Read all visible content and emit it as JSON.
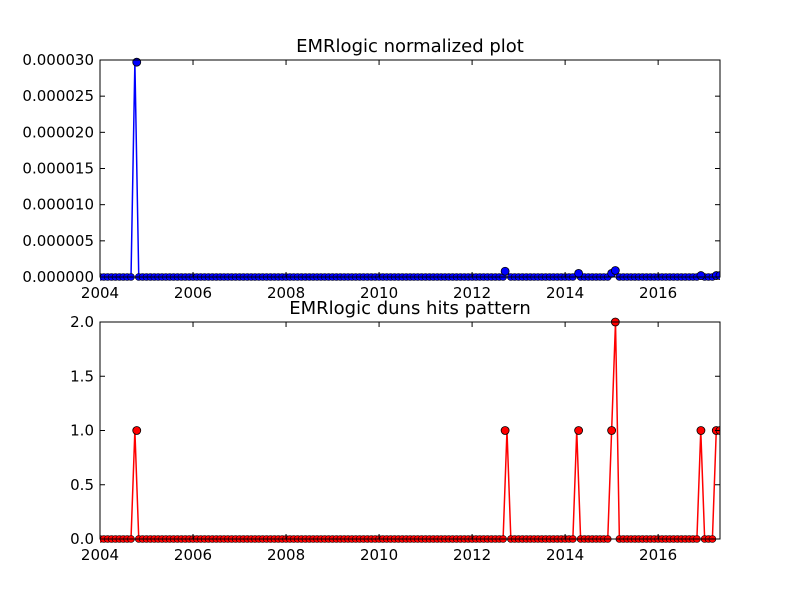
{
  "chart_data": [
    {
      "type": "line",
      "title": "EMRlogic normalized plot",
      "xlabel": "",
      "ylabel": "",
      "xlim": [
        2004.0,
        2017.33
      ],
      "ylim": [
        0,
        3e-05
      ],
      "x_ticks": [
        2004,
        2006,
        2008,
        2010,
        2012,
        2014,
        2016
      ],
      "x_tick_labels": [
        "2004",
        "2006",
        "2008",
        "2010",
        "2012",
        "2014",
        "2016"
      ],
      "y_ticks": [
        0,
        5e-06,
        1e-05,
        1.5e-05,
        2e-05,
        2.5e-05,
        3e-05
      ],
      "y_tick_labels": [
        "0.000000",
        "0.000005",
        "0.000010",
        "0.000015",
        "0.000020",
        "0.000025",
        "0.000030"
      ],
      "grid": false,
      "baseline": {
        "from": 2004.0,
        "to": 2017.33,
        "step_months": 1,
        "value": 0
      },
      "series": [
        {
          "color": "#0000ff",
          "marker": "circle",
          "points": [
            {
              "x": 2004.79,
              "y": 2.97e-05
            },
            {
              "x": 2012.71,
              "y": 8e-07
            },
            {
              "x": 2014.29,
              "y": 5e-07
            },
            {
              "x": 2015.0,
              "y": 5e-07
            },
            {
              "x": 2015.08,
              "y": 9e-07
            },
            {
              "x": 2016.92,
              "y": 2e-07
            },
            {
              "x": 2017.25,
              "y": 2e-07
            },
            {
              "x": 2017.33,
              "y": 2e-07
            }
          ]
        }
      ]
    },
    {
      "type": "line",
      "title": "EMRlogic duns hits pattern",
      "xlabel": "",
      "ylabel": "",
      "xlim": [
        2004.0,
        2017.33
      ],
      "ylim": [
        0,
        2.0
      ],
      "x_ticks": [
        2004,
        2006,
        2008,
        2010,
        2012,
        2014,
        2016
      ],
      "x_tick_labels": [
        "2004",
        "2006",
        "2008",
        "2010",
        "2012",
        "2014",
        "2016"
      ],
      "y_ticks": [
        0,
        0.5,
        1.0,
        1.5,
        2.0
      ],
      "y_tick_labels": [
        "0.0",
        "0.5",
        "1.0",
        "1.5",
        "2.0"
      ],
      "grid": false,
      "baseline": {
        "from": 2004.0,
        "to": 2017.33,
        "step_months": 1,
        "value": 0
      },
      "series": [
        {
          "color": "#ff0000",
          "marker": "circle",
          "points": [
            {
              "x": 2004.79,
              "y": 1
            },
            {
              "x": 2012.71,
              "y": 1
            },
            {
              "x": 2014.29,
              "y": 1
            },
            {
              "x": 2015.0,
              "y": 1
            },
            {
              "x": 2015.08,
              "y": 2
            },
            {
              "x": 2016.92,
              "y": 1
            },
            {
              "x": 2017.25,
              "y": 1
            },
            {
              "x": 2017.33,
              "y": 1
            }
          ]
        }
      ]
    }
  ]
}
